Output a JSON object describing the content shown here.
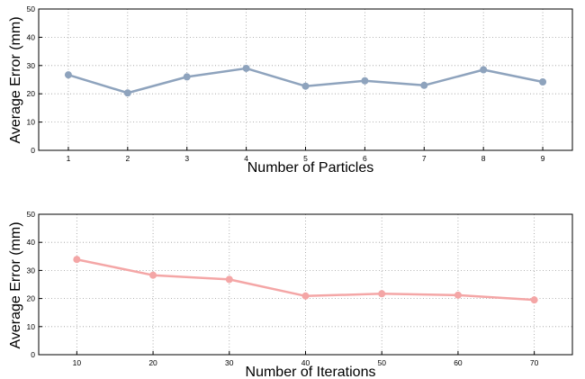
{
  "chart_data": [
    {
      "type": "line",
      "xlabel": "Number of Particles",
      "ylabel": "Average Error (mm)",
      "x": [
        1,
        2,
        3,
        4,
        5,
        6,
        7,
        8,
        9
      ],
      "series": [
        {
          "values": [
            26.7,
            20.3,
            26.0,
            29.0,
            22.7,
            24.6,
            23.0,
            28.5,
            24.2
          ],
          "color": "#8ea3bd"
        }
      ],
      "xlim": [
        0.5,
        9.5
      ],
      "ylim": [
        0,
        50
      ],
      "xticks": [
        1,
        2,
        3,
        4,
        5,
        6,
        7,
        8,
        9
      ],
      "yticks": [
        0,
        10,
        20,
        30,
        40,
        50
      ],
      "grid": true
    },
    {
      "type": "line",
      "xlabel": "Number of Iterations",
      "ylabel": "Average Error (mm)",
      "x": [
        10,
        20,
        30,
        40,
        50,
        60,
        70
      ],
      "series": [
        {
          "values": [
            33.9,
            28.3,
            26.8,
            20.9,
            21.7,
            21.2,
            19.5
          ],
          "color": "#f4a6a6"
        }
      ],
      "xlim": [
        5,
        75
      ],
      "ylim": [
        0,
        50
      ],
      "xticks": [
        10,
        20,
        30,
        40,
        50,
        60,
        70
      ],
      "yticks": [
        0,
        10,
        20,
        30,
        40,
        50
      ],
      "grid": true
    }
  ]
}
